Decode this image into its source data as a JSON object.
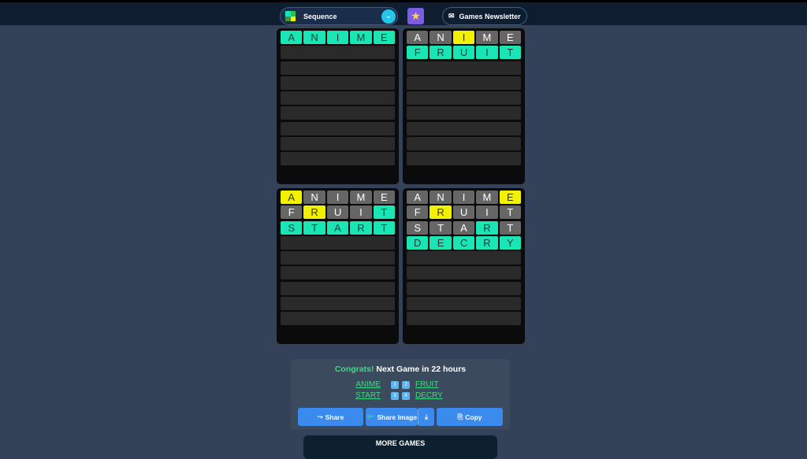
{
  "header": {
    "game_select": "Sequence",
    "newsletter": "Games Newsletter"
  },
  "colors": {
    "correct": "#19e6b4",
    "present": "#f2f200",
    "absent": "#666666",
    "empty": "#2a2a2a"
  },
  "boards": [
    {
      "rows": [
        {
          "word": "ANIME",
          "states": "ggggg"
        }
      ]
    },
    {
      "rows": [
        {
          "word": "ANIME",
          "states": "xxyxx"
        },
        {
          "word": "FRUIT",
          "states": "ggggg"
        }
      ]
    },
    {
      "rows": [
        {
          "word": "ANIME",
          "states": "yxxxx"
        },
        {
          "word": "FRUIT",
          "states": "xyxxg"
        },
        {
          "word": "START",
          "states": "ggggg"
        }
      ]
    },
    {
      "rows": [
        {
          "word": "ANIME",
          "states": "xxxxy"
        },
        {
          "word": "FRUIT",
          "states": "xyxxx"
        },
        {
          "word": "START",
          "states": "xxxgx"
        },
        {
          "word": "DECRY",
          "states": "ggggg"
        }
      ]
    }
  ],
  "total_rows": 9,
  "result": {
    "congrats": "Congrats!",
    "next": "Next Game in 22 hours",
    "pairs": [
      {
        "left": "ANIME",
        "keys": [
          "1",
          "2"
        ],
        "right": "FRUIT"
      },
      {
        "left": "START",
        "keys": [
          "3",
          "4"
        ],
        "right": "DECRY"
      }
    ],
    "share": "Share",
    "share_image": "Share Image",
    "copy": "Copy"
  },
  "more_games": "MORE GAMES"
}
